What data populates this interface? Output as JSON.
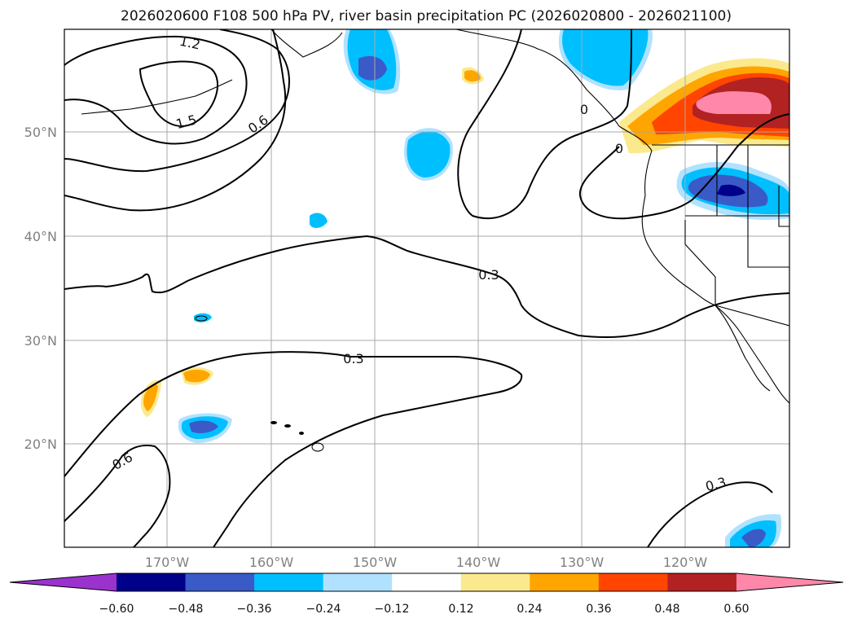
{
  "title": "2026020600 F108 500 hPa PV, river basin precipitation PC (2026020800 - 2026021100)",
  "map": {
    "lat_labels": [
      "50°N",
      "40°N",
      "30°N",
      "20°N"
    ],
    "lon_labels": [
      "170°W",
      "160°W",
      "150°W",
      "140°W",
      "130°W",
      "120°W"
    ]
  },
  "contour_labels": [
    "1.2",
    "1.5",
    "0.6",
    "0.3",
    "0.3",
    "0.6",
    "0.3",
    "0",
    "0"
  ],
  "colorbar": {
    "ticks": [
      "−0.60",
      "−0.48",
      "−0.36",
      "−0.24",
      "−0.12",
      "0.12",
      "0.24",
      "0.36",
      "0.48",
      "0.60"
    ],
    "colors": [
      "#9a32cd",
      "#00008b",
      "#3a5ac8",
      "#00bfff",
      "#b0e2ff",
      "#ffffff",
      "#fbe98d",
      "#ffa500",
      "#ff4500",
      "#b22222",
      "#ff88aa"
    ]
  }
}
